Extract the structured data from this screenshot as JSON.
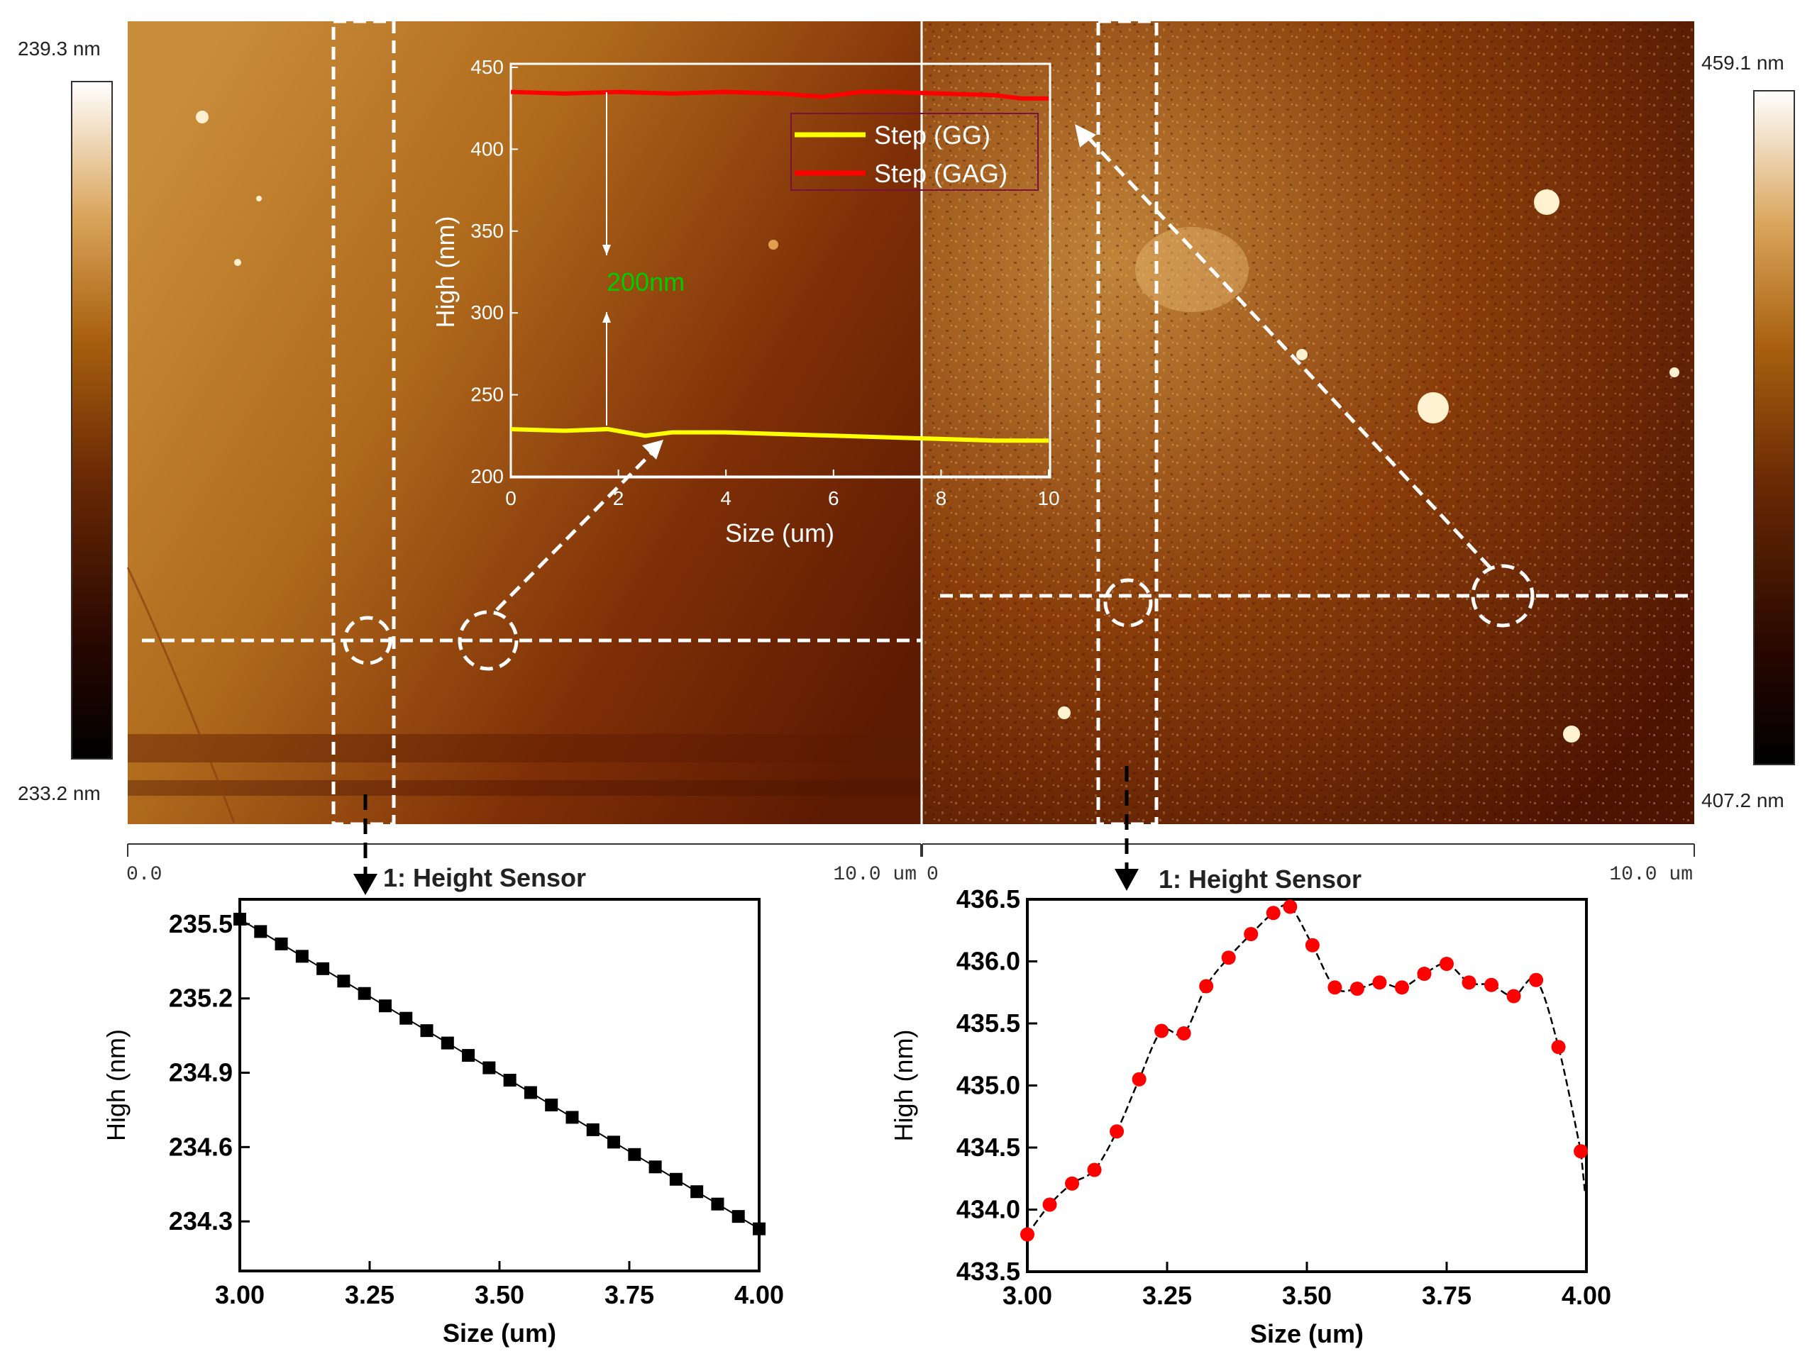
{
  "left_afm": {
    "scale_max": "239.3 nm",
    "scale_min": "233.2 nm",
    "ruler_start": "0.0",
    "ruler_end": "10.0 um",
    "colors": [
      "#2a0b00",
      "#4c1a02",
      "#7a3606",
      "#a8600f",
      "#c9872b",
      "#e8c48a",
      "#ffffff"
    ]
  },
  "right_afm": {
    "scale_max": "459.1 nm",
    "scale_min": "407.2 nm",
    "ruler_start": "0",
    "ruler_end": "10.0 um",
    "colors": [
      "#1e0600",
      "#5a1d02",
      "#8e4308",
      "#bb7218",
      "#dfae5a",
      "#ffffff"
    ]
  },
  "annotations": {
    "step_label": "200nm",
    "left_profile_title": "1: Height Sensor",
    "right_profile_title": "1: Height Sensor"
  },
  "chart_data": [
    {
      "id": "inset-step-profile",
      "type": "line",
      "title": "",
      "xlabel": "Size (um)",
      "ylabel": "High (nm)",
      "xlim": [
        0,
        10
      ],
      "ylim": [
        200,
        450
      ],
      "xticks": [
        0,
        2,
        4,
        6,
        8,
        10
      ],
      "yticks": [
        200,
        250,
        300,
        350,
        400,
        450
      ],
      "legend_position": "top-right",
      "series": [
        {
          "name": "Step (GG)",
          "color": "#ffff00",
          "x": [
            0,
            1,
            1.8,
            2.5,
            3,
            4,
            5,
            6,
            7,
            8,
            9,
            10
          ],
          "y": [
            229,
            228,
            229,
            225,
            227,
            227,
            226,
            225,
            224,
            223,
            222,
            222
          ]
        },
        {
          "name": "Step (GAG)",
          "color": "#ff0000",
          "x": [
            0,
            1,
            2,
            3,
            4,
            5,
            5.8,
            6.5,
            7,
            8,
            9,
            9.5,
            10
          ],
          "y": [
            435,
            434,
            435,
            434,
            435,
            434,
            432,
            435,
            435,
            434,
            433,
            431,
            431
          ]
        }
      ]
    },
    {
      "id": "left-height-profile",
      "type": "line",
      "title": "1: Height Sensor",
      "xlabel": "Size (um)",
      "ylabel": "High (nm)",
      "xlim": [
        3.0,
        4.0
      ],
      "ylim": [
        234.1,
        235.6
      ],
      "xticks": [
        "3.00",
        "3.25",
        "3.50",
        "3.75",
        "4.00"
      ],
      "yticks": [
        "234.3",
        "234.6",
        "234.9",
        "235.2",
        "235.5"
      ],
      "marker": "square",
      "color": "#000000",
      "series": [
        {
          "name": "GG",
          "x": [
            3.0,
            3.04,
            3.08,
            3.12,
            3.16,
            3.2,
            3.24,
            3.28,
            3.32,
            3.36,
            3.4,
            3.44,
            3.48,
            3.52,
            3.56,
            3.6,
            3.64,
            3.68,
            3.72,
            3.76,
            3.8,
            3.84,
            3.88,
            3.92,
            3.96,
            4.0
          ],
          "y": [
            235.52,
            235.47,
            235.42,
            235.37,
            235.32,
            235.27,
            235.22,
            235.17,
            235.12,
            235.07,
            235.02,
            234.97,
            234.92,
            234.87,
            234.82,
            234.77,
            234.72,
            234.67,
            234.62,
            234.57,
            234.52,
            234.47,
            234.42,
            234.37,
            234.32,
            234.27
          ]
        }
      ]
    },
    {
      "id": "right-height-profile",
      "type": "line",
      "title": "1: Height Sensor",
      "xlabel": "Size (um)",
      "ylabel": "High (nm)",
      "xlim": [
        3.0,
        4.0
      ],
      "ylim": [
        433.5,
        436.5
      ],
      "xticks": [
        "3.00",
        "3.25",
        "3.50",
        "3.75",
        "4.00"
      ],
      "yticks": [
        "433.5",
        "434.0",
        "434.5",
        "435.0",
        "435.5",
        "436.0",
        "436.5"
      ],
      "marker": "circle",
      "color": "#ff0000",
      "series": [
        {
          "name": "GAG",
          "x": [
            3.0,
            3.04,
            3.08,
            3.12,
            3.16,
            3.2,
            3.24,
            3.28,
            3.32,
            3.36,
            3.4,
            3.44,
            3.47,
            3.51,
            3.55,
            3.59,
            3.63,
            3.67,
            3.71,
            3.75,
            3.79,
            3.83,
            3.87,
            3.91,
            3.95,
            3.99
          ],
          "y": [
            433.8,
            434.04,
            434.21,
            434.32,
            434.63,
            435.05,
            435.44,
            435.42,
            435.8,
            436.03,
            436.22,
            436.39,
            436.44,
            436.13,
            435.79,
            435.78,
            435.83,
            435.79,
            435.9,
            435.98,
            435.83,
            435.81,
            435.72,
            435.85,
            435.31,
            434.47
          ]
        }
      ]
    }
  ]
}
